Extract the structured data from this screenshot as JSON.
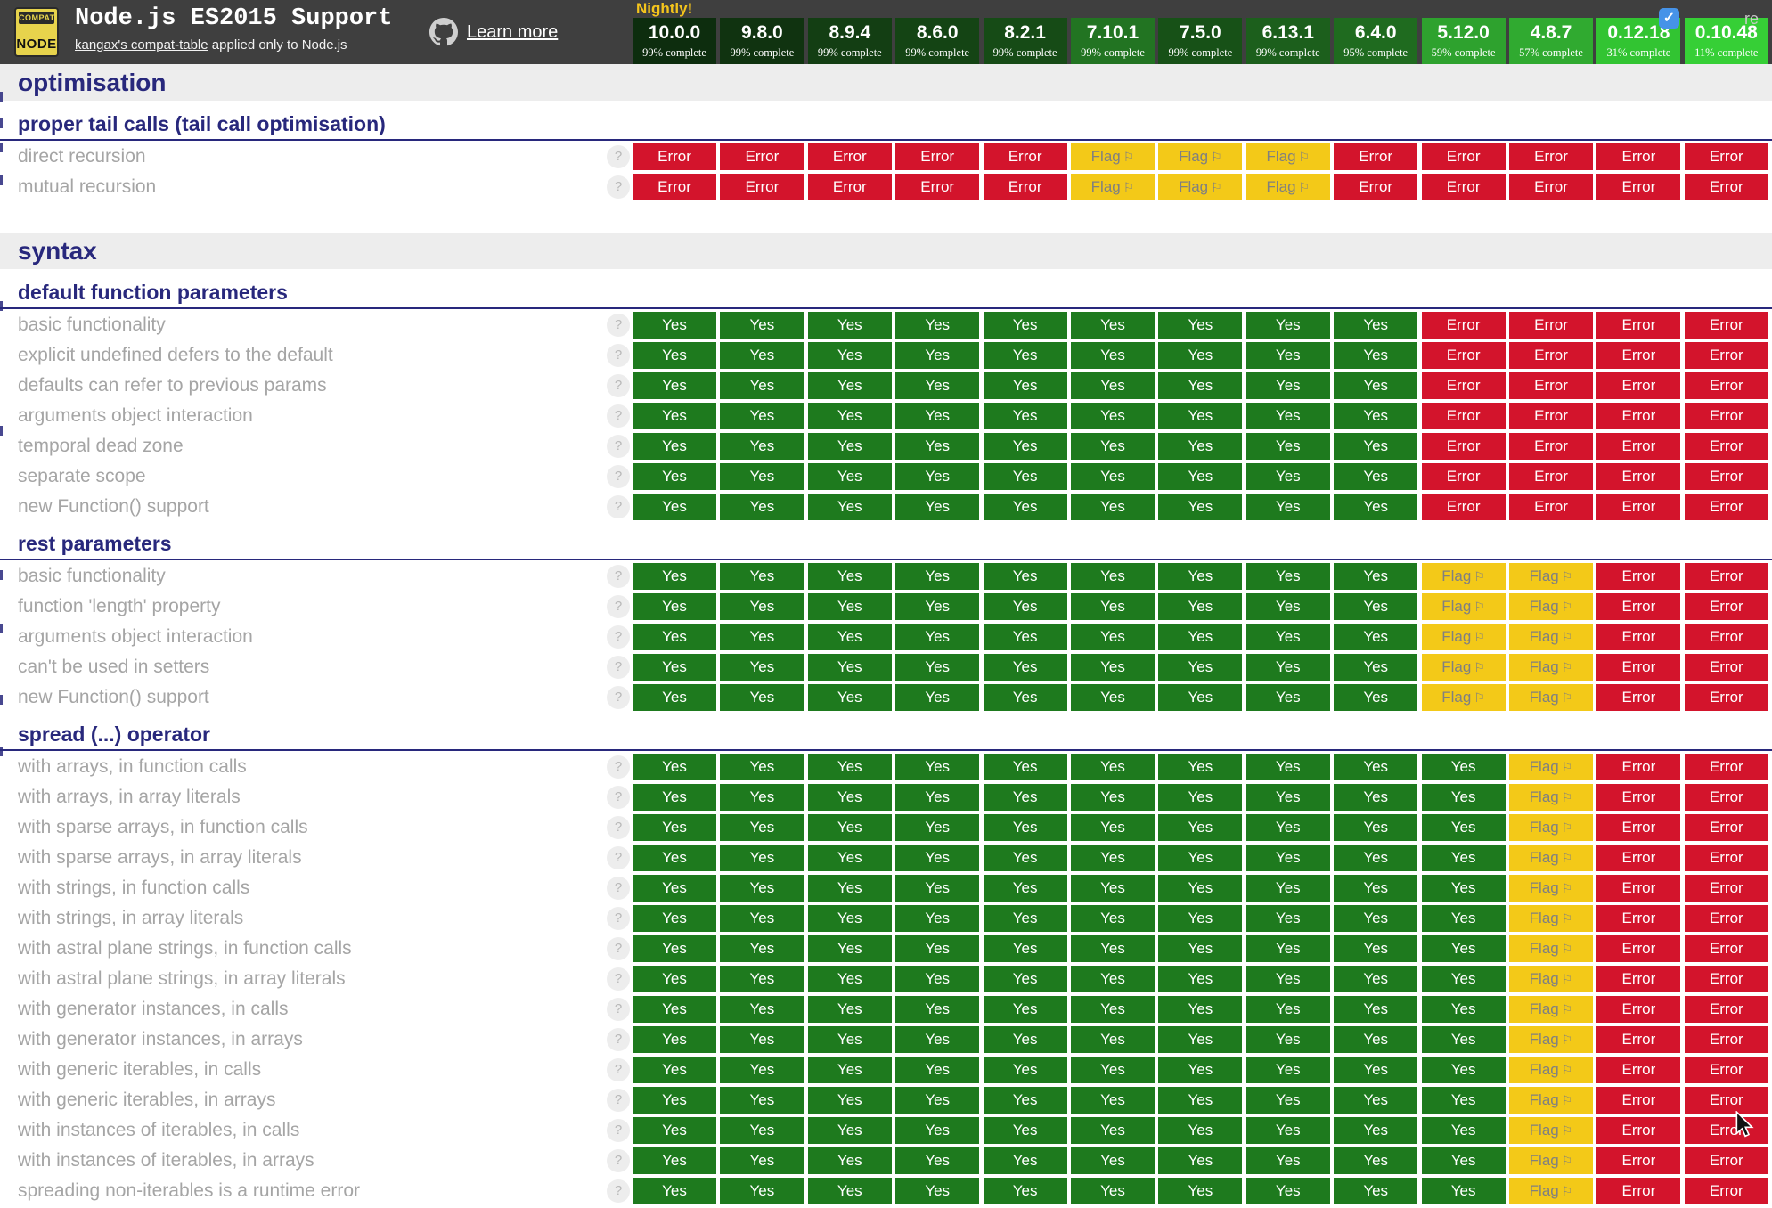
{
  "header": {
    "logo": {
      "top": "COMPAT",
      "bottom": "NODE"
    },
    "title": "Node.js ES2015 Support",
    "subtitle_link": "kangax's compat-table",
    "subtitle_rest": " applied only to Node.js",
    "learn_more": "Learn more",
    "nightly": "Nightly!",
    "checkbox_checked": "✓",
    "checkbox_label": "re",
    "versions": [
      {
        "name": "10.0.0",
        "complete": "99% complete",
        "color": "#0d2d0e"
      },
      {
        "name": "9.8.0",
        "complete": "99% complete",
        "color": "#103310"
      },
      {
        "name": "8.9.4",
        "complete": "99% complete",
        "color": "#133e13"
      },
      {
        "name": "8.6.0",
        "complete": "99% complete",
        "color": "#144414"
      },
      {
        "name": "8.2.1",
        "complete": "99% complete",
        "color": "#164b16"
      },
      {
        "name": "7.10.1",
        "complete": "99% complete",
        "color": "#227422"
      },
      {
        "name": "7.5.0",
        "complete": "99% complete",
        "color": "#175117"
      },
      {
        "name": "6.13.1",
        "complete": "99% complete",
        "color": "#1c5f1c"
      },
      {
        "name": "6.4.0",
        "complete": "95% complete",
        "color": "#1f6b1f"
      },
      {
        "name": "5.12.0",
        "complete": "59% complete",
        "color": "#2ea22e"
      },
      {
        "name": "4.8.7",
        "complete": "57% complete",
        "color": "#30aa30"
      },
      {
        "name": "0.12.18",
        "complete": "31% complete",
        "color": "#32c432"
      },
      {
        "name": "0.10.48",
        "complete": "11% complete",
        "color": "#36cf36"
      }
    ]
  },
  "legend_values": {
    "Y": "Yes",
    "E": "Error",
    "F": "Flag"
  },
  "colors": {
    "yes": "#1e7a1e",
    "error": "#d3142c",
    "flag": "#f3c918",
    "navy": "#28287c"
  },
  "sections": [
    {
      "title": "optimisation",
      "subsections": [
        {
          "title": "proper tail calls (tail call optimisation)",
          "rows": [
            {
              "label": "direct recursion",
              "cells": "EEEEEFFFEEEEE"
            },
            {
              "label": "mutual recursion",
              "cells": "EEEEEFFFEEEEE"
            }
          ]
        }
      ]
    },
    {
      "title": "syntax",
      "subsections": [
        {
          "title": "default function parameters",
          "rows": [
            {
              "label": "basic functionality",
              "cells": "YYYYYYYYYEEEE"
            },
            {
              "label": "explicit undefined defers to the default",
              "cells": "YYYYYYYYYEEEE"
            },
            {
              "label": "defaults can refer to previous params",
              "cells": "YYYYYYYYYEEEE"
            },
            {
              "label": "arguments object interaction",
              "cells": "YYYYYYYYYEEEE"
            },
            {
              "label": "temporal dead zone",
              "cells": "YYYYYYYYYEEEE"
            },
            {
              "label": "separate scope",
              "cells": "YYYYYYYYYEEEE"
            },
            {
              "label": "new Function() support",
              "cells": "YYYYYYYYYEEEE"
            }
          ]
        },
        {
          "title": "rest parameters",
          "rows": [
            {
              "label": "basic functionality",
              "cells": "YYYYYYYYYFFEE"
            },
            {
              "label": "function 'length' property",
              "cells": "YYYYYYYYYFFEE"
            },
            {
              "label": "arguments object interaction",
              "cells": "YYYYYYYYYFFEE"
            },
            {
              "label": "can't be used in setters",
              "cells": "YYYYYYYYYFFEE"
            },
            {
              "label": "new Function() support",
              "cells": "YYYYYYYYYFFEE"
            }
          ]
        },
        {
          "title": "spread (...) operator",
          "rows": [
            {
              "label": "with arrays, in function calls",
              "cells": "YYYYYYYYYYFEE"
            },
            {
              "label": "with arrays, in array literals",
              "cells": "YYYYYYYYYYFEE"
            },
            {
              "label": "with sparse arrays, in function calls",
              "cells": "YYYYYYYYYYFEE"
            },
            {
              "label": "with sparse arrays, in array literals",
              "cells": "YYYYYYYYYYFEE"
            },
            {
              "label": "with strings, in function calls",
              "cells": "YYYYYYYYYYFEE"
            },
            {
              "label": "with strings, in array literals",
              "cells": "YYYYYYYYYYFEE"
            },
            {
              "label": "with astral plane strings, in function calls",
              "cells": "YYYYYYYYYYFEE"
            },
            {
              "label": "with astral plane strings, in array literals",
              "cells": "YYYYYYYYYYFEE"
            },
            {
              "label": "with generator instances, in calls",
              "cells": "YYYYYYYYYYFEE"
            },
            {
              "label": "with generator instances, in arrays",
              "cells": "YYYYYYYYYYFEE"
            },
            {
              "label": "with generic iterables, in calls",
              "cells": "YYYYYYYYYYFEE"
            },
            {
              "label": "with generic iterables, in arrays",
              "cells": "YYYYYYYYYYFEE"
            },
            {
              "label": "with instances of iterables, in calls",
              "cells": "YYYYYYYYYYFEE"
            },
            {
              "label": "with instances of iterables, in arrays",
              "cells": "YYYYYYYYYYFEE"
            },
            {
              "label": "spreading non-iterables is a runtime error",
              "cells": "YYYYYYYYYYFEE"
            }
          ]
        }
      ]
    }
  ]
}
